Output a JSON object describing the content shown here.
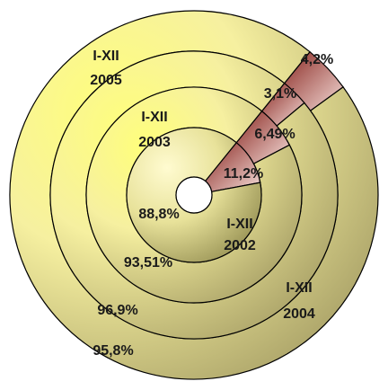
{
  "chart_data": {
    "type": "donut",
    "rings": [
      {
        "label_lines": [
          "I-XII",
          "2002"
        ],
        "values": [
          11.2,
          88.8
        ],
        "value_labels": [
          "11,2%",
          "88,8%"
        ]
      },
      {
        "label_lines": [
          "I-XII",
          "2003"
        ],
        "values": [
          6.49,
          93.51
        ],
        "value_labels": [
          "6,49%",
          "93,51%"
        ]
      },
      {
        "label_lines": [
          "I-XII",
          "2004"
        ],
        "values": [
          3.1,
          96.9
        ],
        "value_labels": [
          "3,1%",
          "96,9%"
        ]
      },
      {
        "label_lines": [
          "I-XII",
          "2005"
        ],
        "values": [
          4.2,
          95.8
        ],
        "value_labels": [
          "4,2%",
          "95,8%"
        ]
      }
    ],
    "colors": {
      "small_segment_dark": "#8a2a24",
      "small_segment_light": "#f4dcd8",
      "large_segment_dark": "#aaa268",
      "large_segment_light": "#ffff7a",
      "ring_edge": "#000000"
    }
  }
}
